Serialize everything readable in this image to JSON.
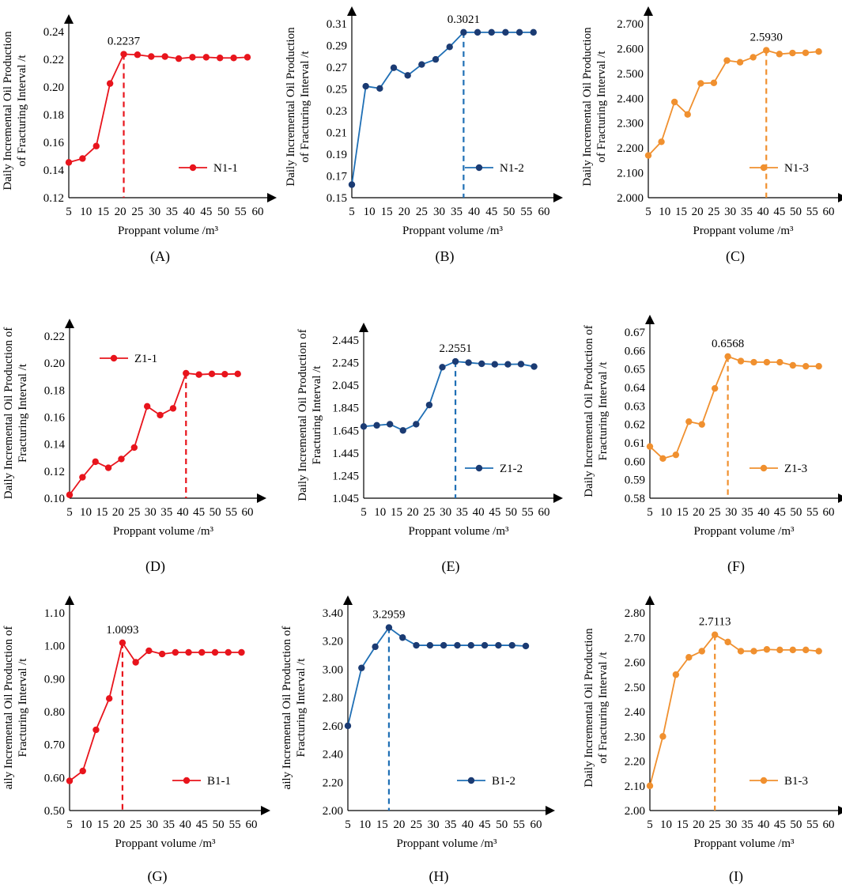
{
  "chart_data": [
    {
      "panel_label": "(A)",
      "type": "line",
      "series_name": "N1-1",
      "color": "#e8141c",
      "ylabel": [
        "Daily Incremental Oil Production",
        "of Fracturing Interval /t"
      ],
      "xlabel": "Proppant volume /m³",
      "xticks": [
        "5",
        "10",
        "15",
        "20",
        "25",
        "30",
        "35",
        "40",
        "45",
        "50",
        "55",
        "60"
      ],
      "yticks": [
        "0.12",
        "0.14",
        "0.16",
        "0.18",
        "0.20",
        "0.22",
        "0.24"
      ],
      "ylim": [
        0.12,
        0.24
      ],
      "x": [
        5,
        9,
        13,
        17,
        21,
        25,
        29,
        33,
        37,
        41,
        45,
        49,
        53,
        57
      ],
      "values": [
        0.1455,
        0.1483,
        0.1573,
        0.2025,
        0.2237,
        0.2233,
        0.222,
        0.222,
        0.2205,
        0.2215,
        0.2215,
        0.221,
        0.221,
        0.2215
      ],
      "peak": {
        "x": 21,
        "value": 0.2237,
        "label": "0.2237"
      },
      "legend": "lower-right"
    },
    {
      "panel_label": "(B)",
      "type": "line",
      "series_name": "N1-2",
      "color": "#1f6fb5",
      "marker_color": "#1b3b73",
      "ylabel": [
        "Daily Incremental Oil Production",
        "of Fracturing Interval /t"
      ],
      "xlabel": "Proppant volume /m³",
      "xticks": [
        "5",
        "10",
        "15",
        "20",
        "25",
        "30",
        "35",
        "40",
        "45",
        "50",
        "55",
        "60"
      ],
      "yticks": [
        "0.15",
        "0.17",
        "0.19",
        "0.21",
        "0.23",
        "0.25",
        "0.27",
        "0.29",
        "0.31"
      ],
      "ylim": [
        0.15,
        0.31
      ],
      "x": [
        5,
        9,
        13,
        17,
        21,
        25,
        29,
        33,
        37,
        41,
        45,
        49,
        53,
        57
      ],
      "values": [
        0.162,
        0.2525,
        0.2505,
        0.2695,
        0.2625,
        0.2725,
        0.2772,
        0.2887,
        0.3021,
        0.3021,
        0.3021,
        0.3021,
        0.3021,
        0.3021
      ],
      "peak": {
        "x": 37,
        "value": 0.3021,
        "label": "0.3021"
      },
      "legend": "lower-right"
    },
    {
      "panel_label": "(C)",
      "type": "line",
      "series_name": "N1-3",
      "color": "#f0902f",
      "ylabel": [
        "Daily Incremental Oil Production",
        "of Fracturing Interval /t"
      ],
      "xlabel": "Proppant volume /m³",
      "xticks": [
        "5",
        "10",
        "15",
        "20",
        "25",
        "30",
        "35",
        "40",
        "45",
        "50",
        "55",
        "60"
      ],
      "yticks": [
        "2.000",
        "2.100",
        "2.200",
        "2.300",
        "2.400",
        "2.500",
        "2.600",
        "2.700"
      ],
      "ylim": [
        2.0,
        2.7
      ],
      "x": [
        5,
        9,
        13,
        17,
        21,
        25,
        29,
        33,
        37,
        41,
        45,
        49,
        53,
        57
      ],
      "values": [
        2.17,
        2.225,
        2.385,
        2.335,
        2.46,
        2.462,
        2.552,
        2.545,
        2.565,
        2.593,
        2.578,
        2.582,
        2.583,
        2.588
      ],
      "peak": {
        "x": 41,
        "value": 2.593,
        "label": "2.5930"
      },
      "legend": "lower-right"
    },
    {
      "panel_label": "(D)",
      "type": "line",
      "series_name": "Z1-1",
      "color": "#e8141c",
      "ylabel": [
        "Daily Incremental Oil Production of",
        "Fracturing Interval /t"
      ],
      "xlabel": "Proppant volume /m³",
      "xticks": [
        "5",
        "10",
        "15",
        "20",
        "25",
        "30",
        "35",
        "40",
        "45",
        "50",
        "55",
        "60"
      ],
      "yticks": [
        "0.10",
        "0.12",
        "0.14",
        "0.16",
        "0.18",
        "0.20",
        "0.22"
      ],
      "ylim": [
        0.1,
        0.22
      ],
      "x": [
        5,
        9,
        13,
        17,
        21,
        25,
        29,
        33,
        37,
        41,
        45,
        49,
        53,
        57
      ],
      "values": [
        0.1025,
        0.1155,
        0.127,
        0.1225,
        0.129,
        0.1375,
        0.168,
        0.1615,
        0.1665,
        0.1925,
        0.1915,
        0.192,
        0.1918,
        0.192
      ],
      "peak": {
        "x": 41,
        "value": 0.1925
      },
      "legend": "upper-left"
    },
    {
      "panel_label": "(E)",
      "type": "line",
      "series_name": "Z1-2",
      "color": "#1f6fb5",
      "marker_color": "#1b3b73",
      "ylabel": [
        "Daily Incremental Oil Production of",
        "Fracturing Interval /t"
      ],
      "xlabel": "Proppant volume /m³",
      "xticks": [
        "5",
        "10",
        "15",
        "20",
        "25",
        "30",
        "35",
        "40",
        "45",
        "50",
        "55",
        "60"
      ],
      "yticks": [
        "1.045",
        "1.245",
        "1.445",
        "1.645",
        "1.845",
        "2.045",
        "2.245",
        "2.445"
      ],
      "ylim": [
        1.045,
        2.445
      ],
      "x": [
        5,
        9,
        13,
        17,
        21,
        25,
        29,
        33,
        37,
        41,
        45,
        49,
        53,
        57
      ],
      "values": [
        1.68,
        1.69,
        1.7,
        1.645,
        1.7,
        1.87,
        2.205,
        2.2551,
        2.245,
        2.235,
        2.23,
        2.23,
        2.232,
        2.21
      ],
      "peak": {
        "x": 33,
        "value": 2.2551,
        "label": "2.2551"
      },
      "legend": "lower-right"
    },
    {
      "panel_label": "(F)",
      "type": "line",
      "series_name": "Z1-3",
      "color": "#f0902f",
      "ylabel": [
        "Daily Incremental Oil Production of",
        "Fracturing Interval /t"
      ],
      "xlabel": "Proppant volume /m³",
      "xticks": [
        "5",
        "10",
        "15",
        "20",
        "25",
        "30",
        "35",
        "40",
        "45",
        "50",
        "55",
        "60"
      ],
      "yticks": [
        "0.58",
        "0.59",
        "0.60",
        "0.61",
        "0.62",
        "0.63",
        "0.64",
        "0.65",
        "0.66",
        "0.67"
      ],
      "ylim": [
        0.58,
        0.67
      ],
      "x": [
        5,
        9,
        13,
        17,
        21,
        25,
        29,
        33,
        37,
        41,
        45,
        49,
        53,
        57
      ],
      "values": [
        0.608,
        0.6015,
        0.6035,
        0.6215,
        0.62,
        0.6395,
        0.6568,
        0.6543,
        0.6537,
        0.6537,
        0.6537,
        0.652,
        0.6515,
        0.6515
      ],
      "peak": {
        "x": 29,
        "value": 0.6568,
        "label": "0.6568"
      },
      "legend": "lower-right"
    },
    {
      "panel_label": "(G)",
      "type": "line",
      "series_name": "B1-1",
      "color": "#e8141c",
      "ylabel": [
        "aily Incremental Oil Production of",
        "Fracturing Interval /t"
      ],
      "xlabel": "Proppant volume /m³",
      "xticks": [
        "5",
        "10",
        "15",
        "20",
        "25",
        "30",
        "35",
        "40",
        "45",
        "50",
        "55",
        "60"
      ],
      "yticks": [
        "0.50",
        "0.60",
        "0.70",
        "0.80",
        "0.90",
        "1.00",
        "1.10"
      ],
      "ylim": [
        0.5,
        1.1
      ],
      "x": [
        5,
        9,
        13,
        17,
        21,
        25,
        29,
        33,
        37,
        41,
        45,
        49,
        53,
        57
      ],
      "values": [
        0.59,
        0.62,
        0.745,
        0.84,
        1.0093,
        0.95,
        0.985,
        0.975,
        0.98,
        0.98,
        0.98,
        0.98,
        0.98,
        0.98
      ],
      "peak": {
        "x": 21,
        "value": 1.0093,
        "label": "1.0093"
      },
      "legend": "lower-right"
    },
    {
      "panel_label": "(H)",
      "type": "line",
      "series_name": "B1-2",
      "color": "#1f6fb5",
      "marker_color": "#1b3b73",
      "ylabel": [
        "aily Incremental Oil Production of",
        "Fracturing Interval /t"
      ],
      "xlabel": "Proppant volume /m³",
      "xticks": [
        "5",
        "10",
        "15",
        "20",
        "25",
        "30",
        "35",
        "40",
        "45",
        "50",
        "55",
        "60"
      ],
      "yticks": [
        "2.00",
        "2.20",
        "2.40",
        "2.60",
        "2.80",
        "3.00",
        "3.20",
        "3.40"
      ],
      "ylim": [
        2.0,
        3.4
      ],
      "x": [
        5,
        9,
        13,
        17,
        21,
        25,
        29,
        33,
        37,
        41,
        45,
        49,
        53,
        57
      ],
      "values": [
        2.6,
        3.01,
        3.16,
        3.2959,
        3.225,
        3.17,
        3.17,
        3.17,
        3.17,
        3.17,
        3.17,
        3.17,
        3.17,
        3.165
      ],
      "peak": {
        "x": 17,
        "value": 3.2959,
        "label": "3.2959"
      },
      "legend": "lower-right"
    },
    {
      "panel_label": "(I)",
      "type": "line",
      "series_name": "B1-3",
      "color": "#f0902f",
      "ylabel": [
        "Daily Incremental Oil Production",
        "of Fracturing Interval /t"
      ],
      "xlabel": "Proppant volume /m³",
      "xticks": [
        "5",
        "10",
        "15",
        "20",
        "25",
        "30",
        "35",
        "40",
        "45",
        "50",
        "55",
        "60"
      ],
      "yticks": [
        "2.00",
        "2.10",
        "2.20",
        "2.30",
        "2.40",
        "2.50",
        "2.60",
        "2.70",
        "2.80"
      ],
      "ylim": [
        2.0,
        2.8
      ],
      "x": [
        5,
        9,
        13,
        17,
        21,
        25,
        29,
        33,
        37,
        41,
        45,
        49,
        53,
        57
      ],
      "values": [
        2.1,
        2.3,
        2.55,
        2.62,
        2.645,
        2.7113,
        2.682,
        2.645,
        2.645,
        2.652,
        2.65,
        2.65,
        2.65,
        2.645
      ],
      "peak": {
        "x": 25,
        "value": 2.7113,
        "label": "2.7113"
      },
      "legend": "lower-right"
    }
  ]
}
